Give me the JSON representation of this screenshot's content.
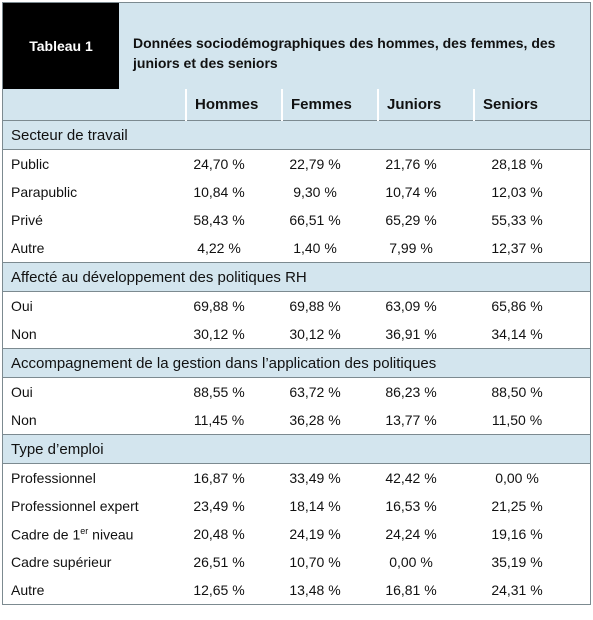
{
  "header": {
    "label": "Tableau 1",
    "title": "Données sociodémographiques des hommes, des femmes, des juniors et des seniors"
  },
  "table": {
    "columns": [
      "Hommes",
      "Femmes",
      "Juniors",
      "Seniors"
    ],
    "sections": [
      {
        "title": "Secteur de travail",
        "rows": [
          [
            "Public",
            "24,70 %",
            "22,79 %",
            "21,76 %",
            "28,18 %"
          ],
          [
            "Parapublic",
            "10,84 %",
            "9,30 %",
            "10,74 %",
            "12,03 %"
          ],
          [
            "Privé",
            "58,43 %",
            "66,51 %",
            "65,29 %",
            "55,33 %"
          ],
          [
            "Autre",
            "4,22 %",
            "1,40 %",
            "7,99 %",
            "12,37 %"
          ]
        ]
      },
      {
        "title": "Affecté au développement des politiques RH",
        "rows": [
          [
            "Oui",
            "69,88 %",
            "69,88 %",
            "63,09 %",
            "65,86 %"
          ],
          [
            "Non",
            "30,12 %",
            "30,12 %",
            "36,91 %",
            "34,14 %"
          ]
        ]
      },
      {
        "title": "Accompagnement de la gestion dans l’application des politiques",
        "rows": [
          [
            "Oui",
            "88,55 %",
            "63,72 %",
            "86,23 %",
            "88,50 %"
          ],
          [
            "Non",
            "11,45 %",
            "36,28 %",
            "13,77 %",
            "11,50 %"
          ]
        ]
      },
      {
        "title": "Type d’emploi",
        "rows": [
          [
            "Professionnel",
            "16,87 %",
            "33,49 %",
            "42,42 %",
            "0,00 %"
          ],
          [
            "Professionnel expert",
            "23,49 %",
            "18,14 %",
            "16,53 %",
            "21,25 %"
          ],
          [
            [
              "Cadre de 1",
              "er",
              " niveau"
            ],
            "20,48 %",
            "24,19 %",
            "24,24 %",
            "19,16 %"
          ],
          [
            "Cadre supérieur",
            "26,51 %",
            "10,70 %",
            "0,00 %",
            "35,19 %"
          ],
          [
            "Autre",
            "12,65 %",
            "13,48 %",
            "16,81 %",
            "24,31 %"
          ]
        ]
      }
    ]
  }
}
